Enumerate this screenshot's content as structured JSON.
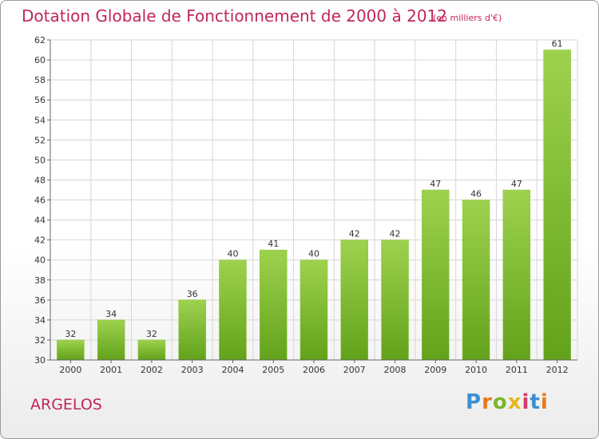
{
  "header": {
    "title": "Dotation Globale de Fonctionnement de 2000 à 2012",
    "subtitle": "(en milliers d'€)"
  },
  "footer": {
    "city": "ARGELOS",
    "brand": "Proxiti"
  },
  "colors": {
    "title": "#c0265a",
    "bar_light": "#9ed24e",
    "bar_dark": "#62a21a",
    "grid": "#d6d6d6",
    "axis": "#666666"
  },
  "chart_data": {
    "type": "bar",
    "categories": [
      "2000",
      "2001",
      "2002",
      "2003",
      "2004",
      "2005",
      "2006",
      "2007",
      "2008",
      "2009",
      "2010",
      "2011",
      "2012"
    ],
    "values": [
      32,
      34,
      32,
      36,
      40,
      41,
      40,
      42,
      42,
      47,
      46,
      47,
      61
    ],
    "ylim": [
      30,
      62
    ],
    "ytick_step": 2,
    "grid": true,
    "data_labels": true,
    "title": "Dotation Globale de Fonctionnement de 2000 à 2012",
    "xlabel": "",
    "ylabel": ""
  }
}
